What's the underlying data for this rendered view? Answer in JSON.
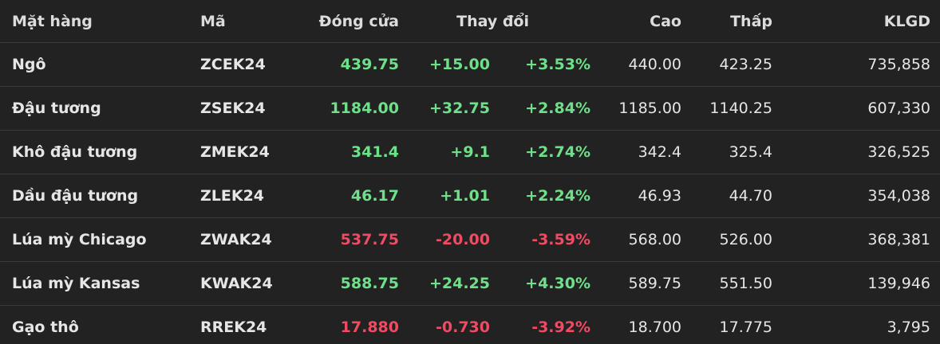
{
  "colors": {
    "background": "#222222",
    "up": "#6fe08a",
    "down": "#f04b63",
    "divider": "#3a3a3a"
  },
  "headers": {
    "name": "Mặt hàng",
    "code": "Mã",
    "close": "Đóng cửa",
    "change": "Thay đổi",
    "high": "Cao",
    "low": "Thấp",
    "volume": "KLGD"
  },
  "rows": [
    {
      "name": "Ngô",
      "code": "ZCEK24",
      "close": "439.75",
      "change": "+15.00",
      "pct": "+3.53%",
      "high": "440.00",
      "low": "423.25",
      "volume": "735,858",
      "direction": "up"
    },
    {
      "name": "Đậu tương",
      "code": "ZSEK24",
      "close": "1184.00",
      "change": "+32.75",
      "pct": "+2.84%",
      "high": "1185.00",
      "low": "1140.25",
      "volume": "607,330",
      "direction": "up"
    },
    {
      "name": "Khô đậu tương",
      "code": "ZMEK24",
      "close": "341.4",
      "change": "+9.1",
      "pct": "+2.74%",
      "high": "342.4",
      "low": "325.4",
      "volume": "326,525",
      "direction": "up"
    },
    {
      "name": "Dầu đậu tương",
      "code": "ZLEK24",
      "close": "46.17",
      "change": "+1.01",
      "pct": "+2.24%",
      "high": "46.93",
      "low": "44.70",
      "volume": "354,038",
      "direction": "up"
    },
    {
      "name": "Lúa mỳ Chicago",
      "code": "ZWAK24",
      "close": "537.75",
      "change": "-20.00",
      "pct": "-3.59%",
      "high": "568.00",
      "low": "526.00",
      "volume": "368,381",
      "direction": "down"
    },
    {
      "name": "Lúa mỳ Kansas",
      "code": "KWAK24",
      "close": "588.75",
      "change": "+24.25",
      "pct": "+4.30%",
      "high": "589.75",
      "low": "551.50",
      "volume": "139,946",
      "direction": "up"
    },
    {
      "name": "Gạo thô",
      "code": "RREK24",
      "close": "17.880",
      "change": "-0.730",
      "pct": "-3.92%",
      "high": "18.700",
      "low": "17.775",
      "volume": "3,795",
      "direction": "down"
    }
  ]
}
